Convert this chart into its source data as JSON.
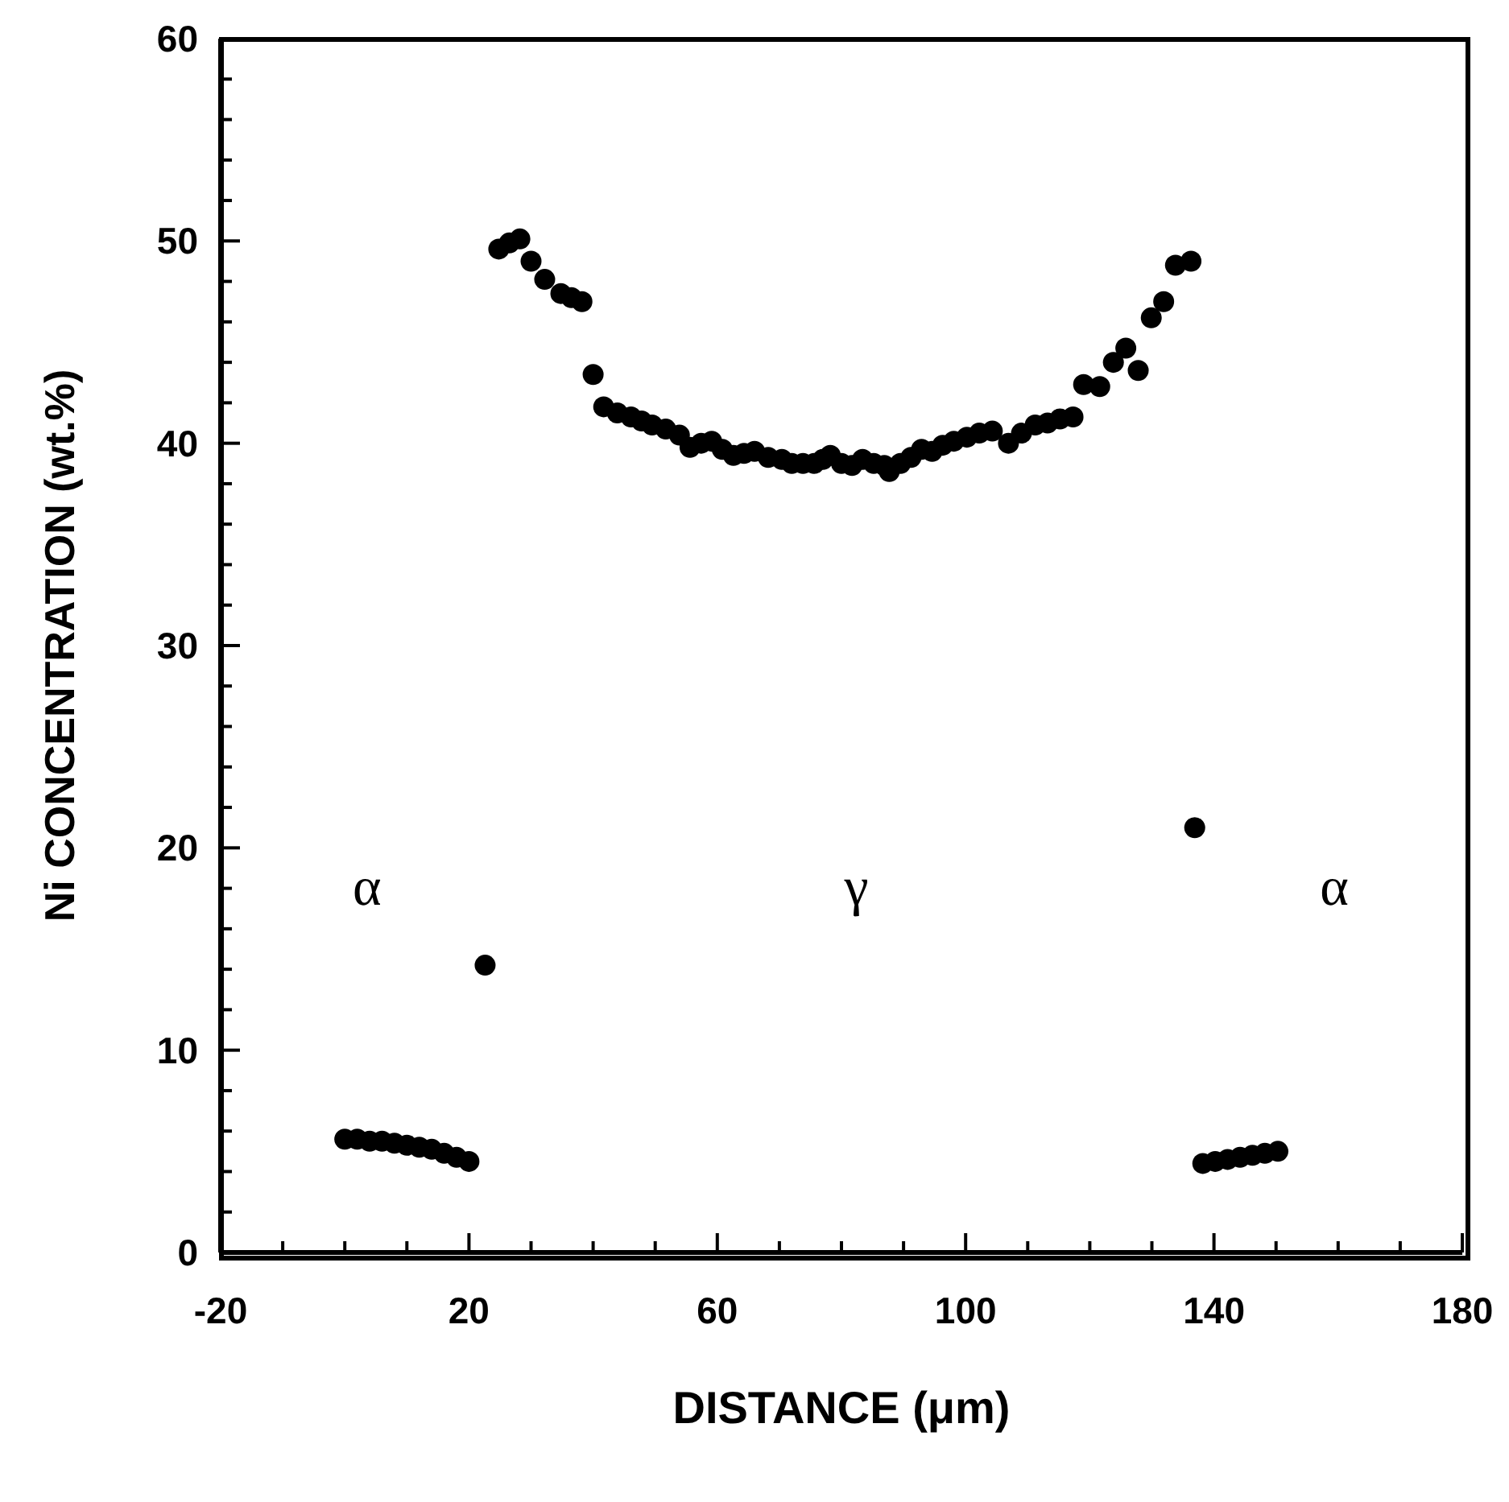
{
  "chart_data": {
    "type": "scatter",
    "xlabel": "DISTANCE (μm)",
    "ylabel": "Ni CONCENTRATION (wt.%)",
    "x": [
      0,
      2,
      4,
      6,
      8,
      10,
      12,
      14,
      16,
      18,
      20,
      22.6,
      24.8,
      26.5,
      28.2,
      30,
      32.2,
      34.8,
      36.5,
      38.2,
      40,
      41.7,
      43.9,
      46.1,
      47.8,
      49.5,
      51.7,
      53.9,
      55.6,
      57.4,
      59.1,
      60.8,
      62.6,
      64.3,
      66,
      68.2,
      70.4,
      72,
      73.8,
      75.6,
      77,
      78.2,
      80,
      81.7,
      83.4,
      85.2,
      86.9,
      87.7,
      89.5,
      91.2,
      92.9,
      94.6,
      96.3,
      98.1,
      100.2,
      102.2,
      104.3,
      106.9,
      109,
      111.2,
      113.2,
      115.2,
      117.3,
      119,
      121.6,
      123.8,
      125.8,
      127.8,
      129.9,
      131.9,
      133.8,
      136.3,
      136.9,
      138.2,
      140.2,
      142.2,
      144.2,
      146.2,
      148.2,
      150.3
    ],
    "series": [
      {
        "color": "#000000",
        "values": [
          5.6,
          5.6,
          5.5,
          5.5,
          5.4,
          5.3,
          5.2,
          5.1,
          4.9,
          4.7,
          4.5,
          14.2,
          49.6,
          49.9,
          50.1,
          49.0,
          48.1,
          47.4,
          47.2,
          47.0,
          43.4,
          41.8,
          41.5,
          41.3,
          41.1,
          40.9,
          40.7,
          40.4,
          39.8,
          40.0,
          40.1,
          39.7,
          39.4,
          39.5,
          39.6,
          39.3,
          39.2,
          39.0,
          39.0,
          39.0,
          39.2,
          39.4,
          39.0,
          38.9,
          39.2,
          39.0,
          38.9,
          38.6,
          39.0,
          39.3,
          39.7,
          39.6,
          39.9,
          40.1,
          40.3,
          40.5,
          40.6,
          40.0,
          40.5,
          40.9,
          41.0,
          41.2,
          41.3,
          42.9,
          42.8,
          44.0,
          44.7,
          43.6,
          46.2,
          47.0,
          48.8,
          49.0,
          21.0,
          4.4,
          4.5,
          4.6,
          4.7,
          4.8,
          4.9,
          5.0
        ]
      }
    ],
    "xlim": [
      -20,
      180
    ],
    "xticks": [
      -20,
      {
        "value": -10,
        "label": null
      },
      {
        "value": 0,
        "label": null
      },
      {
        "value": 10,
        "label": null
      },
      20,
      {
        "value": 30,
        "label": null
      },
      {
        "value": 40,
        "label": null
      },
      {
        "value": 50,
        "label": null
      },
      60,
      {
        "value": 70,
        "label": null
      },
      {
        "value": 80,
        "label": null
      },
      {
        "value": 90,
        "label": null
      },
      100,
      {
        "value": 110,
        "label": null
      },
      {
        "value": 120,
        "label": null
      },
      {
        "value": 130,
        "label": null
      },
      140,
      {
        "value": 150,
        "label": null
      },
      {
        "value": 160,
        "label": null
      },
      {
        "value": 170,
        "label": null
      },
      180
    ],
    "ylim": [
      0,
      60
    ],
    "yticks": [
      0,
      {
        "value": 2,
        "label": null
      },
      {
        "value": 4,
        "label": null
      },
      {
        "value": 6,
        "label": null
      },
      {
        "value": 8,
        "label": null
      },
      10,
      {
        "value": 12,
        "label": null
      },
      {
        "value": 14,
        "label": null
      },
      {
        "value": 16,
        "label": null
      },
      {
        "value": 18,
        "label": null
      },
      20,
      {
        "value": 22,
        "label": null
      },
      {
        "value": 24,
        "label": null
      },
      {
        "value": 26,
        "label": null
      },
      {
        "value": 28,
        "label": null
      },
      30,
      {
        "value": 32,
        "label": null
      },
      {
        "value": 34,
        "label": null
      },
      {
        "value": 36,
        "label": null
      },
      {
        "value": 38,
        "label": null
      },
      40,
      {
        "value": 42,
        "label": null
      },
      {
        "value": 44,
        "label": null
      },
      {
        "value": 46,
        "label": null
      },
      {
        "value": 48,
        "label": null
      },
      50,
      {
        "value": 52,
        "label": null
      },
      {
        "value": 54,
        "label": null
      },
      {
        "value": 56,
        "label": null
      },
      {
        "value": 58,
        "label": null
      },
      60
    ],
    "annotations": [
      "α",
      "γ",
      "α"
    ],
    "grid": false,
    "legend": false,
    "marker": "circle"
  }
}
